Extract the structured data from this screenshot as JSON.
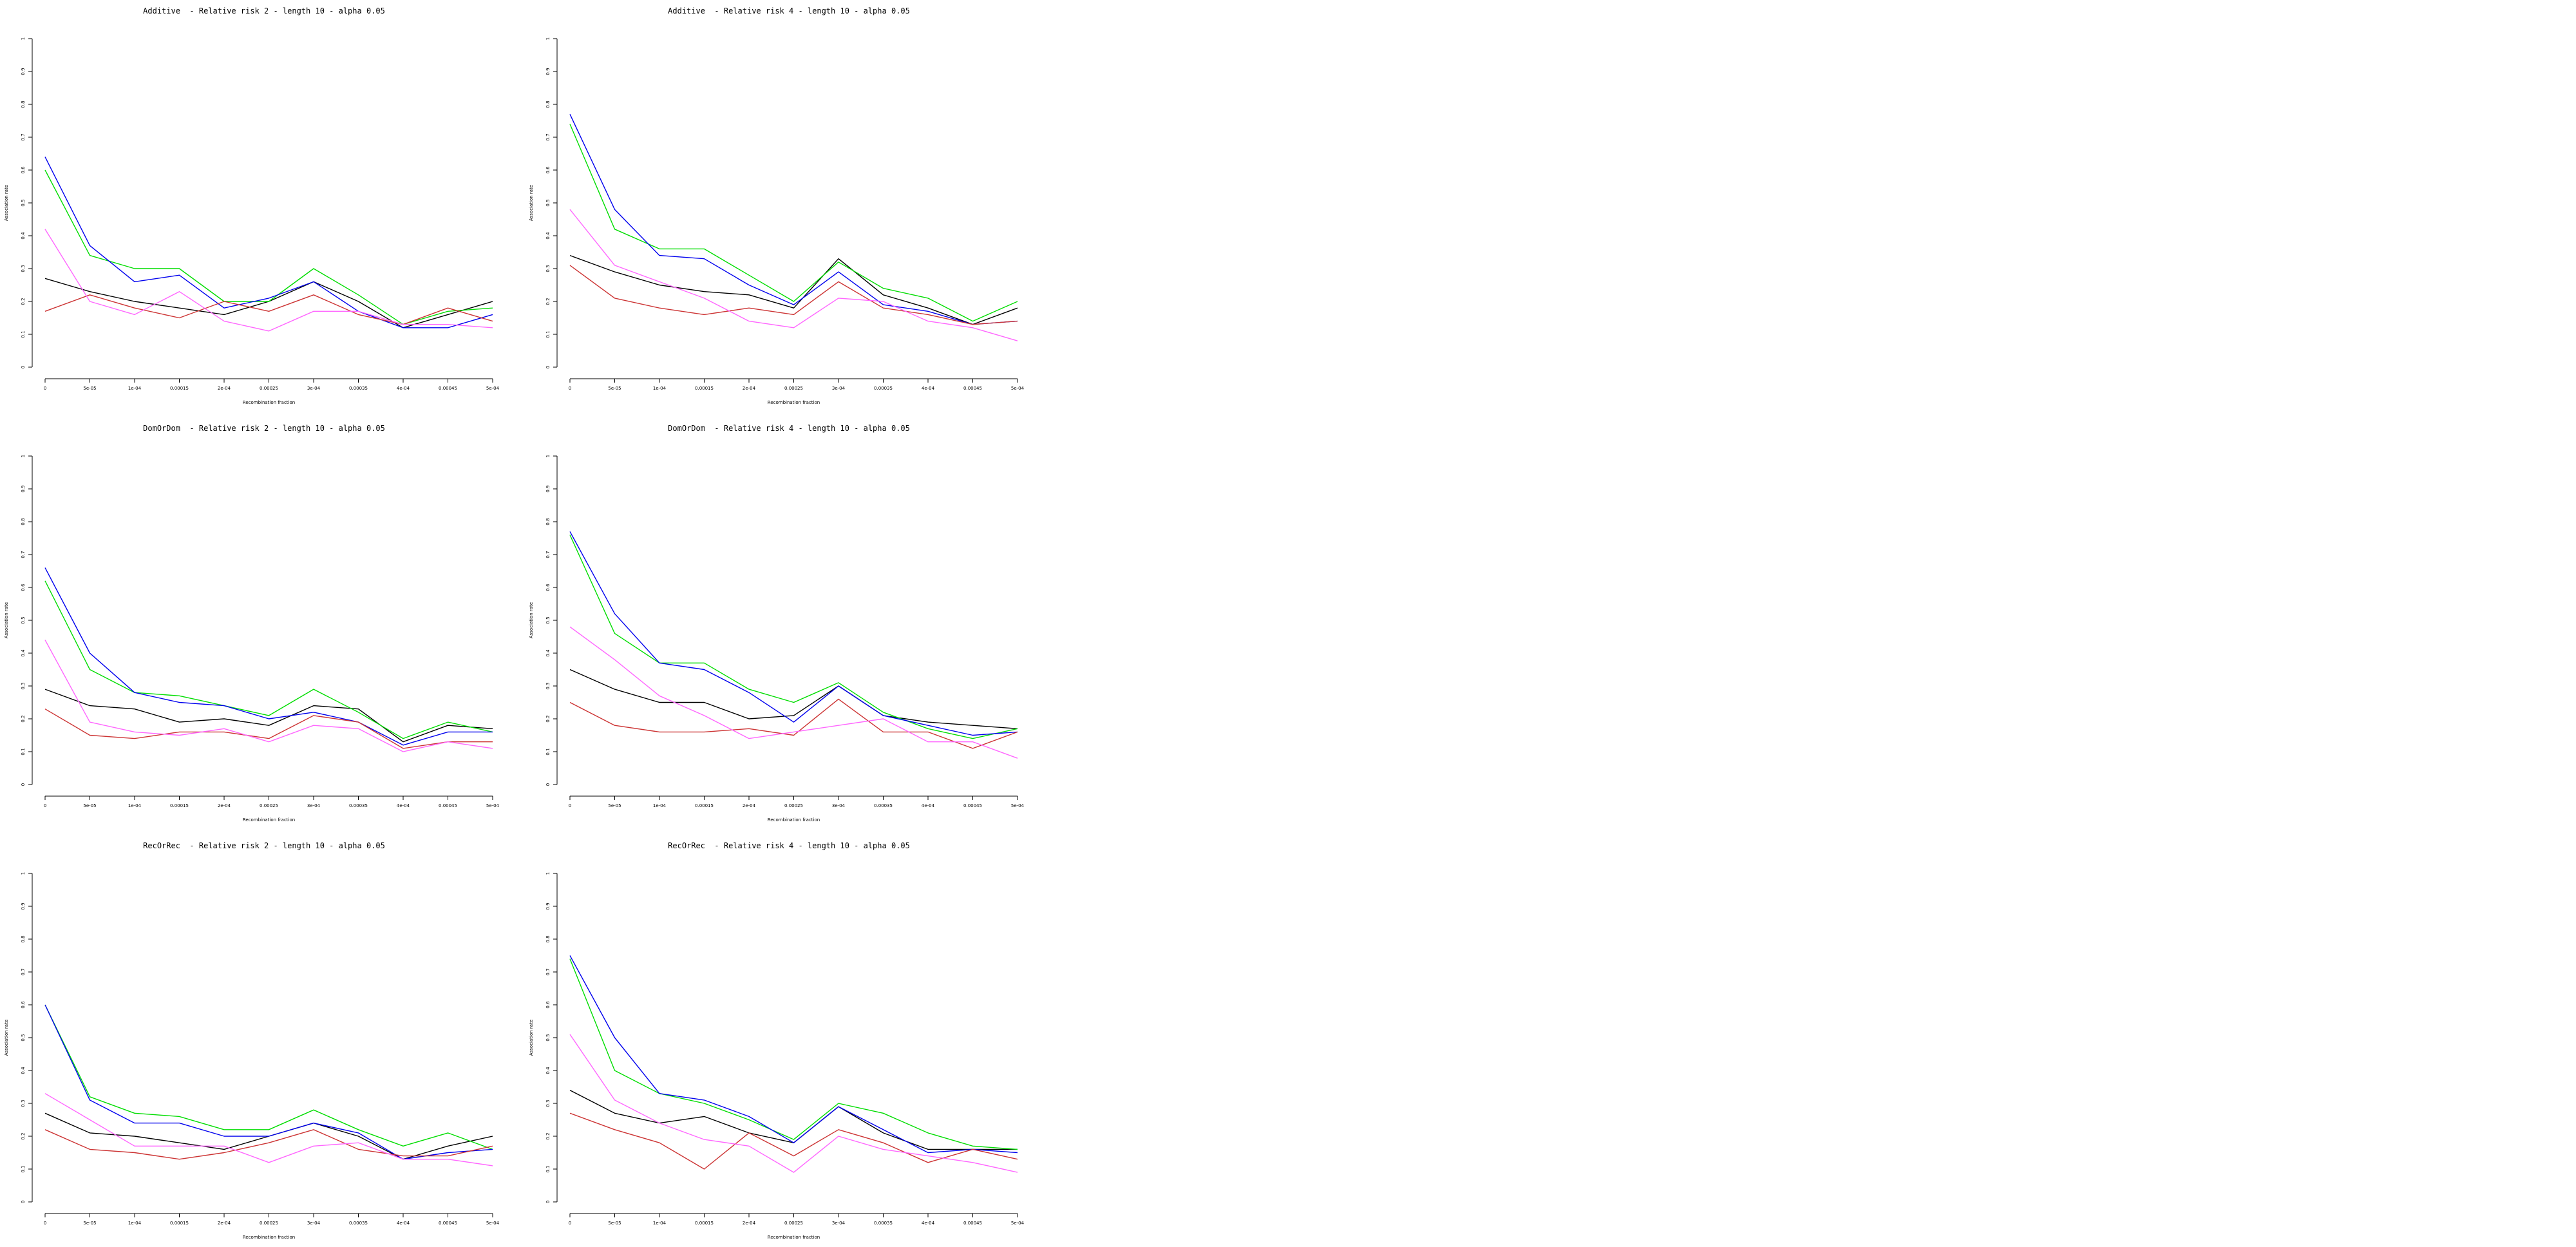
{
  "series_colors": [
    "#000000",
    "#00dd00",
    "#0000ee",
    "#cc3333",
    "#ff66ff"
  ],
  "chart_data": [
    {
      "type": "line",
      "title": "Additive  - Relative risk 2 - length 10 - alpha 0.05",
      "xlabel": "Recombination fraction",
      "ylabel": "Association rate",
      "x": [
        "0",
        "5e-05",
        "1e-04",
        "0.00015",
        "2e-04",
        "0.00025",
        "3e-04",
        "0.00035",
        "4e-04",
        "0.00045",
        "5e-04"
      ],
      "yticks": [
        "0",
        "0.1",
        "0.2",
        "0.3",
        "0.4",
        "0.5",
        "0.6",
        "0.7",
        "0.8",
        "0.9",
        "1"
      ],
      "ylim": [
        0,
        1
      ],
      "series": [
        {
          "color": "#000000",
          "values": [
            0.27,
            0.23,
            0.2,
            0.18,
            0.16,
            0.2,
            0.26,
            0.2,
            0.12,
            0.16,
            0.2
          ]
        },
        {
          "color": "#00dd00",
          "values": [
            0.6,
            0.34,
            0.3,
            0.3,
            0.2,
            0.2,
            0.3,
            0.22,
            0.13,
            0.17,
            0.18
          ]
        },
        {
          "color": "#0000ee",
          "values": [
            0.64,
            0.37,
            0.26,
            0.28,
            0.18,
            0.21,
            0.26,
            0.17,
            0.12,
            0.12,
            0.16
          ]
        },
        {
          "color": "#cc3333",
          "values": [
            0.17,
            0.22,
            0.18,
            0.15,
            0.2,
            0.17,
            0.22,
            0.16,
            0.13,
            0.18,
            0.14
          ]
        },
        {
          "color": "#ff66ff",
          "values": [
            0.42,
            0.2,
            0.16,
            0.23,
            0.14,
            0.11,
            0.17,
            0.17,
            0.13,
            0.13,
            0.12
          ]
        }
      ]
    },
    {
      "type": "line",
      "title": "Additive  - Relative risk 4 - length 10 - alpha 0.05",
      "xlabel": "Recombination fraction",
      "ylabel": "Association rate",
      "x": [
        "0",
        "5e-05",
        "1e-04",
        "0.00015",
        "2e-04",
        "0.00025",
        "3e-04",
        "0.00035",
        "4e-04",
        "0.00045",
        "5e-04"
      ],
      "yticks": [
        "0",
        "0.1",
        "0.2",
        "0.3",
        "0.4",
        "0.5",
        "0.6",
        "0.7",
        "0.8",
        "0.9",
        "1"
      ],
      "ylim": [
        0,
        1
      ],
      "series": [
        {
          "color": "#000000",
          "values": [
            0.34,
            0.29,
            0.25,
            0.23,
            0.22,
            0.18,
            0.33,
            0.22,
            0.18,
            0.13,
            0.18
          ]
        },
        {
          "color": "#00dd00",
          "values": [
            0.74,
            0.42,
            0.36,
            0.36,
            0.28,
            0.2,
            0.32,
            0.24,
            0.21,
            0.14,
            0.2
          ]
        },
        {
          "color": "#0000ee",
          "values": [
            0.77,
            0.48,
            0.34,
            0.33,
            0.25,
            0.19,
            0.29,
            0.19,
            0.17,
            0.13,
            0.14
          ]
        },
        {
          "color": "#cc3333",
          "values": [
            0.31,
            0.21,
            0.18,
            0.16,
            0.18,
            0.16,
            0.26,
            0.18,
            0.16,
            0.13,
            0.14
          ]
        },
        {
          "color": "#ff66ff",
          "values": [
            0.48,
            0.31,
            0.26,
            0.21,
            0.14,
            0.12,
            0.21,
            0.2,
            0.14,
            0.12,
            0.08
          ]
        }
      ]
    },
    {
      "type": "line",
      "title": "DomOrDom  - Relative risk 2 - length 10 - alpha 0.05",
      "xlabel": "Recombination fraction",
      "ylabel": "Association rate",
      "x": [
        "0",
        "5e-05",
        "1e-04",
        "0.00015",
        "2e-04",
        "0.00025",
        "3e-04",
        "0.00035",
        "4e-04",
        "0.00045",
        "5e-04"
      ],
      "yticks": [
        "0",
        "0.1",
        "0.2",
        "0.3",
        "0.4",
        "0.5",
        "0.6",
        "0.7",
        "0.8",
        "0.9",
        "1"
      ],
      "ylim": [
        0,
        1
      ],
      "series": [
        {
          "color": "#000000",
          "values": [
            0.29,
            0.24,
            0.23,
            0.19,
            0.2,
            0.18,
            0.24,
            0.23,
            0.13,
            0.18,
            0.17
          ]
        },
        {
          "color": "#00dd00",
          "values": [
            0.62,
            0.35,
            0.28,
            0.27,
            0.24,
            0.21,
            0.29,
            0.22,
            0.14,
            0.19,
            0.16
          ]
        },
        {
          "color": "#0000ee",
          "values": [
            0.66,
            0.4,
            0.28,
            0.25,
            0.24,
            0.2,
            0.22,
            0.19,
            0.12,
            0.16,
            0.16
          ]
        },
        {
          "color": "#cc3333",
          "values": [
            0.23,
            0.15,
            0.14,
            0.16,
            0.16,
            0.14,
            0.21,
            0.19,
            0.11,
            0.13,
            0.13
          ]
        },
        {
          "color": "#ff66ff",
          "values": [
            0.44,
            0.19,
            0.16,
            0.15,
            0.17,
            0.13,
            0.18,
            0.17,
            0.1,
            0.13,
            0.11
          ]
        }
      ]
    },
    {
      "type": "line",
      "title": "DomOrDom  - Relative risk 4 - length 10 - alpha 0.05",
      "xlabel": "Recombination fraction",
      "ylabel": "Association rate",
      "x": [
        "0",
        "5e-05",
        "1e-04",
        "0.00015",
        "2e-04",
        "0.00025",
        "3e-04",
        "0.00035",
        "4e-04",
        "0.00045",
        "5e-04"
      ],
      "yticks": [
        "0",
        "0.1",
        "0.2",
        "0.3",
        "0.4",
        "0.5",
        "0.6",
        "0.7",
        "0.8",
        "0.9",
        "1"
      ],
      "ylim": [
        0,
        1
      ],
      "series": [
        {
          "color": "#000000",
          "values": [
            0.35,
            0.29,
            0.25,
            0.25,
            0.2,
            0.21,
            0.3,
            0.21,
            0.19,
            0.18,
            0.17
          ]
        },
        {
          "color": "#00dd00",
          "values": [
            0.76,
            0.46,
            0.37,
            0.37,
            0.29,
            0.25,
            0.31,
            0.22,
            0.17,
            0.14,
            0.17
          ]
        },
        {
          "color": "#0000ee",
          "values": [
            0.77,
            0.52,
            0.37,
            0.35,
            0.28,
            0.19,
            0.3,
            0.21,
            0.18,
            0.15,
            0.16
          ]
        },
        {
          "color": "#cc3333",
          "values": [
            0.25,
            0.18,
            0.16,
            0.16,
            0.17,
            0.15,
            0.26,
            0.16,
            0.16,
            0.11,
            0.16
          ]
        },
        {
          "color": "#ff66ff",
          "values": [
            0.48,
            0.38,
            0.27,
            0.21,
            0.14,
            0.16,
            0.18,
            0.2,
            0.13,
            0.13,
            0.08
          ]
        }
      ]
    },
    {
      "type": "line",
      "title": "RecOrRec  - Relative risk 2 - length 10 - alpha 0.05",
      "xlabel": "Recombination fraction",
      "ylabel": "Association rate",
      "x": [
        "0",
        "5e-05",
        "1e-04",
        "0.00015",
        "2e-04",
        "0.00025",
        "3e-04",
        "0.00035",
        "4e-04",
        "0.00045",
        "5e-04"
      ],
      "yticks": [
        "0",
        "0.1",
        "0.2",
        "0.3",
        "0.4",
        "0.5",
        "0.6",
        "0.7",
        "0.8",
        "0.9",
        "1"
      ],
      "ylim": [
        0,
        1
      ],
      "series": [
        {
          "color": "#000000",
          "values": [
            0.27,
            0.21,
            0.2,
            0.18,
            0.16,
            0.2,
            0.24,
            0.2,
            0.13,
            0.17,
            0.2
          ]
        },
        {
          "color": "#00dd00",
          "values": [
            0.6,
            0.32,
            0.27,
            0.26,
            0.22,
            0.22,
            0.28,
            0.22,
            0.17,
            0.21,
            0.16
          ]
        },
        {
          "color": "#0000ee",
          "values": [
            0.6,
            0.31,
            0.24,
            0.24,
            0.2,
            0.2,
            0.24,
            0.21,
            0.13,
            0.15,
            0.16
          ]
        },
        {
          "color": "#cc3333",
          "values": [
            0.22,
            0.16,
            0.15,
            0.13,
            0.15,
            0.18,
            0.22,
            0.16,
            0.14,
            0.14,
            0.17
          ]
        },
        {
          "color": "#ff66ff",
          "values": [
            0.33,
            0.25,
            0.17,
            0.17,
            0.17,
            0.12,
            0.17,
            0.18,
            0.13,
            0.13,
            0.11
          ]
        }
      ]
    },
    {
      "type": "line",
      "title": "RecOrRec  - Relative risk 4 - length 10 - alpha 0.05",
      "xlabel": "Recombination fraction",
      "ylabel": "Association rate",
      "x": [
        "0",
        "5e-05",
        "1e-04",
        "0.00015",
        "2e-04",
        "0.00025",
        "3e-04",
        "0.00035",
        "4e-04",
        "0.00045",
        "5e-04"
      ],
      "yticks": [
        "0",
        "0.1",
        "0.2",
        "0.3",
        "0.4",
        "0.5",
        "0.6",
        "0.7",
        "0.8",
        "0.9",
        "1"
      ],
      "ylim": [
        0,
        1
      ],
      "series": [
        {
          "color": "#000000",
          "values": [
            0.34,
            0.27,
            0.24,
            0.26,
            0.21,
            0.18,
            0.29,
            0.21,
            0.16,
            0.16,
            0.16
          ]
        },
        {
          "color": "#00dd00",
          "values": [
            0.74,
            0.4,
            0.33,
            0.3,
            0.25,
            0.19,
            0.3,
            0.27,
            0.21,
            0.17,
            0.16
          ]
        },
        {
          "color": "#0000ee",
          "values": [
            0.75,
            0.5,
            0.33,
            0.31,
            0.26,
            0.18,
            0.29,
            0.22,
            0.15,
            0.16,
            0.15
          ]
        },
        {
          "color": "#cc3333",
          "values": [
            0.27,
            0.22,
            0.18,
            0.1,
            0.21,
            0.14,
            0.22,
            0.18,
            0.12,
            0.16,
            0.13
          ]
        },
        {
          "color": "#ff66ff",
          "values": [
            0.51,
            0.31,
            0.24,
            0.19,
            0.17,
            0.09,
            0.2,
            0.16,
            0.14,
            0.12,
            0.09
          ]
        }
      ]
    }
  ]
}
